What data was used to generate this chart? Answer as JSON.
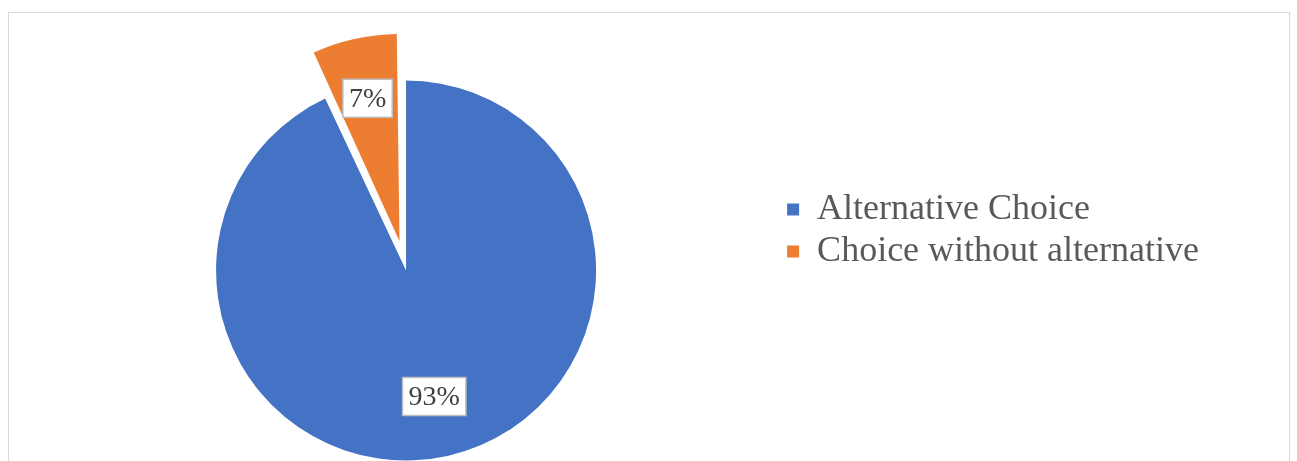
{
  "chart_data": {
    "type": "pie",
    "categories": [
      "Alternative Choice",
      "Choice without alternative"
    ],
    "values": [
      93,
      7
    ],
    "colors": [
      "#4472c4",
      "#ed7d31"
    ],
    "value_labels": [
      "93%",
      "7%"
    ],
    "legend": "right"
  }
}
